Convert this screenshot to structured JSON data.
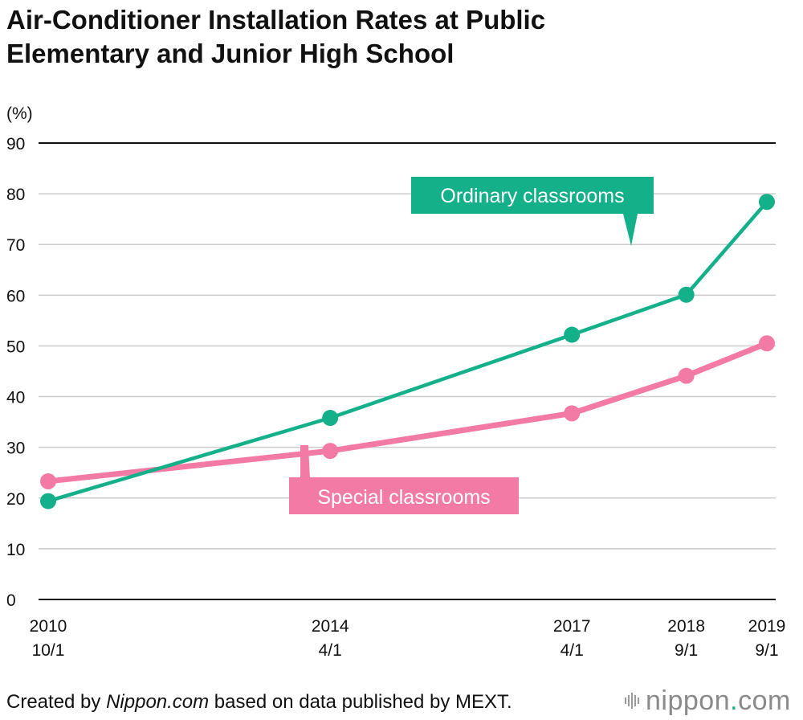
{
  "title_lines": [
    "Air-Conditioner Installation Rates at Public",
    "Elementary and Junior High School"
  ],
  "footer": {
    "prefix": "Created by ",
    "brand": "Nippon.com",
    "suffix": " based on data published by MEXT."
  },
  "logo": {
    "text": "nippon",
    "dot": ".",
    "tld": "com",
    "icon": "signal-bars-icon"
  },
  "colors": {
    "ordinary": "#13b08a",
    "special": "#f47aa6",
    "grid": "#cccccc",
    "axis": "#111111"
  },
  "chart_data": {
    "type": "line",
    "title": "Air-Conditioner Installation Rates at Public Elementary and Junior High School",
    "ylabel": "(%)",
    "xlabel": "",
    "ylim": [
      0,
      90
    ],
    "yticks": [
      0,
      10,
      20,
      30,
      40,
      50,
      60,
      70,
      80,
      90
    ],
    "grid": true,
    "categories": [
      {
        "year": "2010",
        "date": "10/1",
        "t": 2010.75
      },
      {
        "year": "2014",
        "date": "4/1",
        "t": 2014.25
      },
      {
        "year": "2017",
        "date": "4/1",
        "t": 2017.25
      },
      {
        "year": "2018",
        "date": "9/1",
        "t": 2018.67
      },
      {
        "year": "2019",
        "date": "9/1",
        "t": 2019.67
      }
    ],
    "series": [
      {
        "name": "Ordinary classrooms",
        "key": "ordinary",
        "values": [
          19.4,
          35.8,
          52.2,
          60.1,
          78.4
        ]
      },
      {
        "name": "Special classrooms",
        "key": "special",
        "values": [
          23.3,
          29.3,
          36.7,
          44.1,
          50.5
        ]
      }
    ]
  }
}
